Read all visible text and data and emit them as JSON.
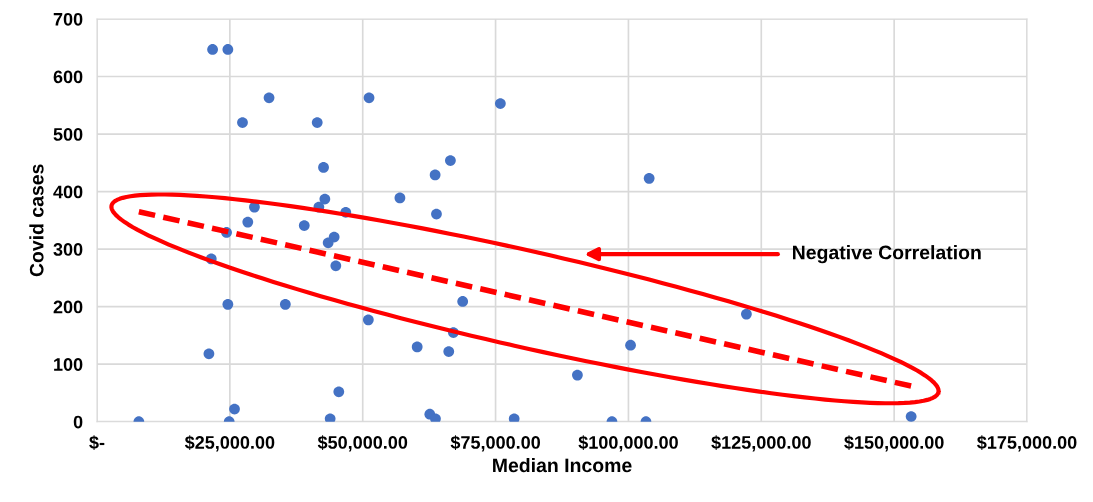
{
  "chart_data": {
    "type": "scatter",
    "xlabel": "Median Income",
    "ylabel": "Covid cases",
    "xlim": [
      0,
      175000
    ],
    "ylim": [
      0,
      700
    ],
    "xticks": [
      {
        "value": 0,
        "label": "$-"
      },
      {
        "value": 25000,
        "label": "$25,000.00"
      },
      {
        "value": 50000,
        "label": "$50,000.00"
      },
      {
        "value": 75000,
        "label": "$75,000.00"
      },
      {
        "value": 100000,
        "label": "$100,000.00"
      },
      {
        "value": 125000,
        "label": "$125,000.00"
      },
      {
        "value": 150000,
        "label": "$150,000.00"
      },
      {
        "value": 175000,
        "label": "$175,000.00"
      }
    ],
    "yticks": [
      0,
      100,
      200,
      300,
      400,
      500,
      600,
      700
    ],
    "grid": true,
    "series": [
      {
        "color": "#4472c4",
        "marker": "circle",
        "x": [
          21750,
          24625,
          32375,
          51190,
          75900,
          27375,
          41440,
          42625,
          63625,
          66500,
          57000,
          42875,
          41750,
          29625,
          46810,
          63875,
          28375,
          39000,
          24375,
          44625,
          43500,
          21500,
          44940,
          24625,
          35440,
          68810,
          51060,
          67060,
          60250,
          66190,
          21060,
          45500,
          25875,
          7875,
          24875,
          43875,
          62625,
          63690,
          103900,
          122200,
          100400,
          90400,
          78500,
          96900,
          103300,
          153200
        ],
        "values": [
          647,
          647,
          563,
          563,
          553,
          520,
          520,
          442,
          429,
          454,
          389,
          387,
          373,
          373,
          364,
          361,
          347,
          341,
          329,
          321,
          311,
          283,
          271,
          204,
          204,
          209,
          177,
          155,
          130,
          122,
          118,
          52,
          22,
          0,
          0,
          5,
          13,
          5,
          423,
          187,
          133,
          81,
          5,
          0,
          0,
          9
        ]
      },
      {
        "type": "line",
        "color": "#ff0000",
        "line_style": "dashed",
        "x": [
          7875,
          153200
        ],
        "values": [
          365,
          62
        ]
      }
    ],
    "annotations": [
      "Negative Correlation"
    ]
  }
}
